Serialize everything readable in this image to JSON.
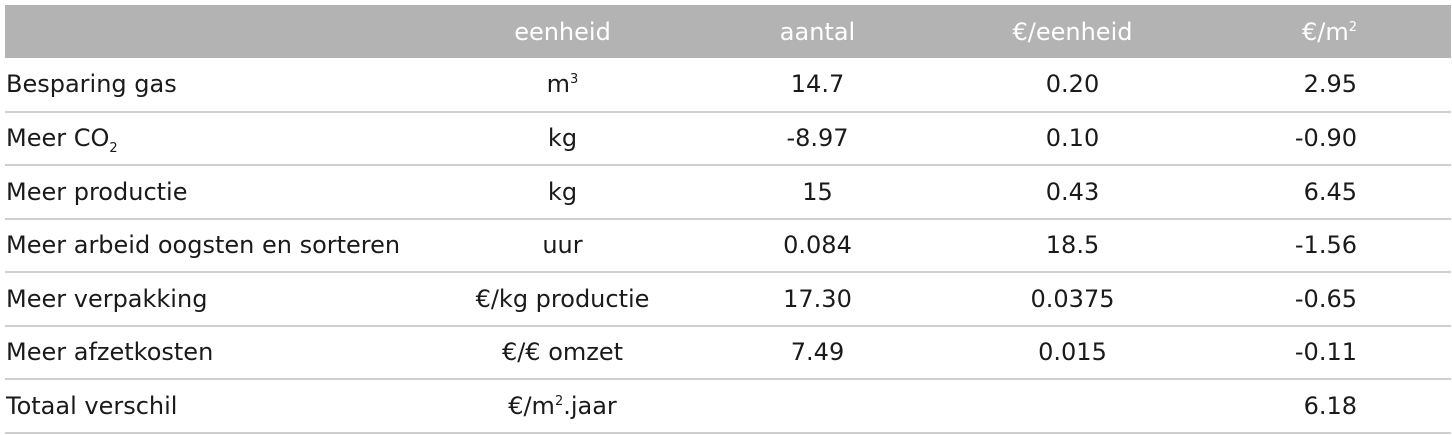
{
  "table": {
    "headers": {
      "label": "",
      "unit": "eenheid",
      "count": "aantal",
      "price": "€/eenheid",
      "total_base": "€/m",
      "total_sup": "2"
    },
    "rows": [
      {
        "label_base": "Besparing gas",
        "label_sub": "",
        "unit_base": "m",
        "unit_sup": "3",
        "unit_suffix": "",
        "count": "14.7",
        "price": "0.20",
        "total": "2.95"
      },
      {
        "label_base": "Meer CO",
        "label_sub": "2",
        "unit_base": "kg",
        "unit_sup": "",
        "unit_suffix": "",
        "count": "-8.97",
        "price": "0.10",
        "total": "-0.90"
      },
      {
        "label_base": "Meer productie",
        "label_sub": "",
        "unit_base": "kg",
        "unit_sup": "",
        "unit_suffix": "",
        "count": "15",
        "price": "0.43",
        "total": "6.45"
      },
      {
        "label_base": "Meer arbeid oogsten en sorteren",
        "label_sub": "",
        "unit_base": "uur",
        "unit_sup": "",
        "unit_suffix": "",
        "count": "0.084",
        "price": "18.5",
        "total": "-1.56"
      },
      {
        "label_base": "Meer verpakking",
        "label_sub": "",
        "unit_base": "€/kg productie",
        "unit_sup": "",
        "unit_suffix": "",
        "count": "17.30",
        "price": "0.0375",
        "total": "-0.65"
      },
      {
        "label_base": "Meer afzetkosten",
        "label_sub": "",
        "unit_base": "€/€ omzet",
        "unit_sup": "",
        "unit_suffix": "",
        "count": "7.49",
        "price": "0.015",
        "total": "-0.11"
      },
      {
        "label_base": "Totaal verschil",
        "label_sub": "",
        "unit_base": "€/m",
        "unit_sup": "2",
        "unit_suffix": ".jaar",
        "count": "",
        "price": "",
        "total": "6.18"
      }
    ]
  },
  "colors": {
    "header_bg": "#b3b3b3",
    "header_text": "#ffffff",
    "row_divider": "#cfcfcf",
    "body_text": "#1a1a1a"
  }
}
